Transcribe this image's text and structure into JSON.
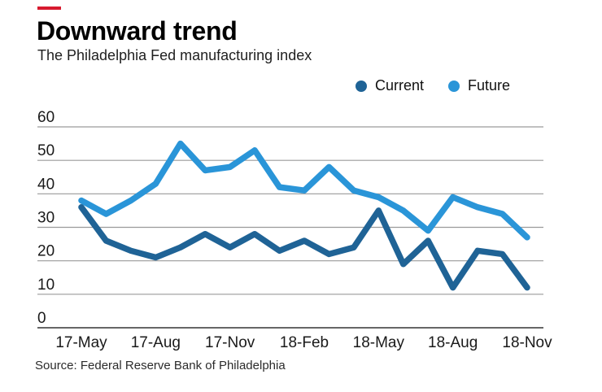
{
  "brand": {
    "dash_color": "#d71a2e"
  },
  "chart_data": {
    "type": "line",
    "title": "Downward trend",
    "subtitle": "The Philadelphia Fed manufacturing index",
    "source": "Source: Federal Reserve Bank of Philadelphia",
    "x": [
      "17-May",
      "17-Jun",
      "17-Jul",
      "17-Aug",
      "17-Sep",
      "17-Oct",
      "17-Nov",
      "17-Dec",
      "18-Jan",
      "18-Feb",
      "18-Mar",
      "18-Apr",
      "18-May",
      "18-Jun",
      "18-Jul",
      "18-Aug",
      "18-Sep",
      "18-Oct",
      "18-Nov"
    ],
    "x_tick_labels": [
      "17-May",
      "17-Aug",
      "17-Nov",
      "18-Feb",
      "18-May",
      "18-Aug",
      "18-Nov"
    ],
    "yticks": [
      0,
      10,
      20,
      30,
      40,
      50,
      60
    ],
    "ylim": [
      0,
      60
    ],
    "grid": true,
    "legend_position": "top-right",
    "series": [
      {
        "name": "Current",
        "color": "#1f6396",
        "values": [
          36,
          26,
          23,
          21,
          24,
          28,
          24,
          28,
          23,
          26,
          22,
          24,
          35,
          19,
          26,
          12,
          23,
          22,
          12
        ]
      },
      {
        "name": "Future",
        "color": "#2a95d8",
        "values": [
          38,
          34,
          38,
          43,
          55,
          47,
          48,
          53,
          42,
          41,
          48,
          41,
          39,
          35,
          29,
          39,
          36,
          34,
          27
        ]
      }
    ],
    "colors": {
      "gridline": "#9a9a9a",
      "zero_line": "#666666",
      "axis_text": "#1a1a1a"
    }
  }
}
